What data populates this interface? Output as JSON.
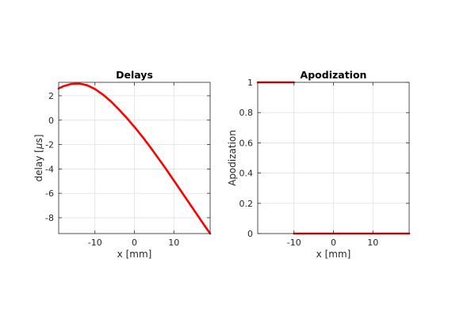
{
  "chart_data": [
    {
      "type": "line",
      "title": "Delays",
      "xlabel": "x [mm]",
      "ylabel_main": "delay [",
      "ylabel_mu": "μ",
      "ylabel_tail": "s]",
      "xlim": [
        -19.2,
        19.2
      ],
      "ylim": [
        -9.3,
        3.1
      ],
      "xticks": [
        -10,
        0,
        10
      ],
      "xtick_labels": [
        "-10",
        "0",
        "10"
      ],
      "yticks": [
        2,
        0,
        -2,
        -4,
        -6,
        -8
      ],
      "ytick_labels": [
        "2",
        "0",
        "-2",
        "-4",
        "-6",
        "-8"
      ],
      "grid": true,
      "line_color": "#ff0000",
      "series": [
        {
          "x": [
            -19.2,
            -18,
            -16,
            -14,
            -12,
            -10,
            -8,
            -6,
            -4,
            -2,
            0,
            2,
            4,
            6,
            8,
            10,
            12,
            14,
            16,
            18,
            19.2
          ],
          "y": [
            2.6,
            2.78,
            2.97,
            3.0,
            2.86,
            2.55,
            2.1,
            1.55,
            0.9,
            0.2,
            -0.55,
            -1.35,
            -2.2,
            -3.1,
            -4.0,
            -4.95,
            -5.9,
            -6.85,
            -7.8,
            -8.75,
            -9.3
          ]
        }
      ]
    },
    {
      "type": "line",
      "title": "Apodization",
      "xlabel": "x [mm]",
      "ylabel": "Apodization",
      "xlim": [
        -19.2,
        19.2
      ],
      "ylim": [
        0,
        1
      ],
      "xticks": [
        -10,
        0,
        10
      ],
      "xtick_labels": [
        "-10",
        "0",
        "10"
      ],
      "yticks": [
        0,
        0.2,
        0.4,
        0.6,
        0.8,
        1
      ],
      "ytick_labels": [
        "0",
        "0.2",
        "0.4",
        "0.6",
        "0.8",
        "1"
      ],
      "grid": true,
      "line_color": "#ff0000",
      "series": [
        {
          "x": [
            -19.2,
            -10
          ],
          "y": [
            1,
            1
          ]
        },
        {
          "x": [
            -10,
            19.2
          ],
          "y": [
            0,
            0
          ]
        }
      ]
    }
  ]
}
